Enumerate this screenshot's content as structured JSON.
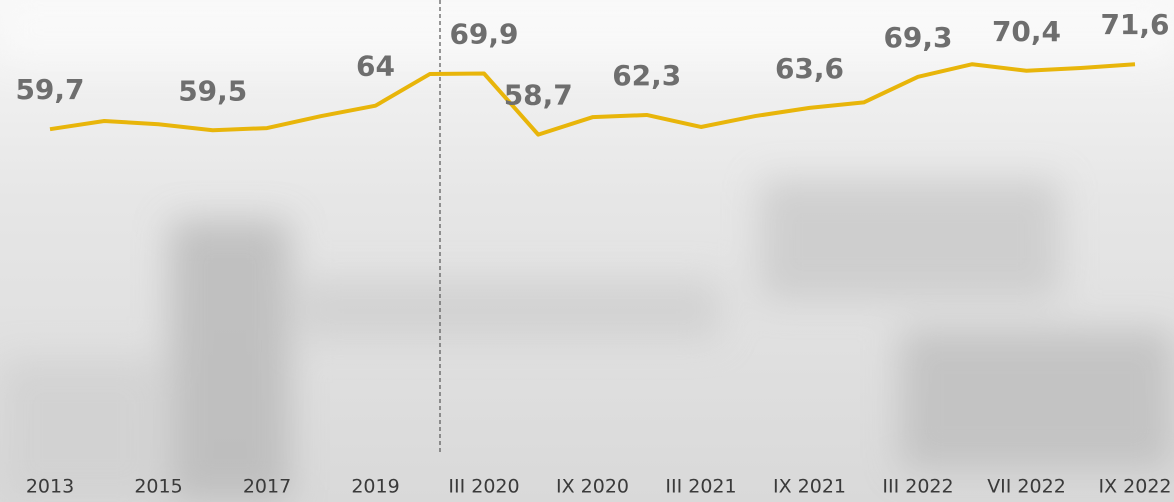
{
  "chart_data": {
    "type": "line",
    "categories": [
      "2013",
      null,
      "2015",
      null,
      "2017",
      null,
      "2019",
      null,
      "III 2020",
      null,
      "IX 2020",
      null,
      "III 2021",
      null,
      "IX 2021",
      null,
      "III 2022",
      null,
      "VII 2022",
      null,
      "IX 2022"
    ],
    "values": [
      59.7,
      61.2,
      60.6,
      59.5,
      59.9,
      62.1,
      64,
      69.8,
      69.9,
      58.7,
      61.9,
      62.3,
      60.1,
      62.1,
      63.6,
      64.6,
      69.3,
      71.6,
      70.4,
      70.9,
      71.6
    ],
    "value_labels": [
      "59,7",
      null,
      null,
      "59,5",
      null,
      null,
      "64",
      null,
      "69,9",
      "58,7",
      null,
      "62,3",
      null,
      null,
      "63,6",
      null,
      "69,3",
      null,
      "70,4",
      null,
      "71,6"
    ],
    "color": "#e8b50a",
    "ylim": [
      0,
      83
    ]
  }
}
